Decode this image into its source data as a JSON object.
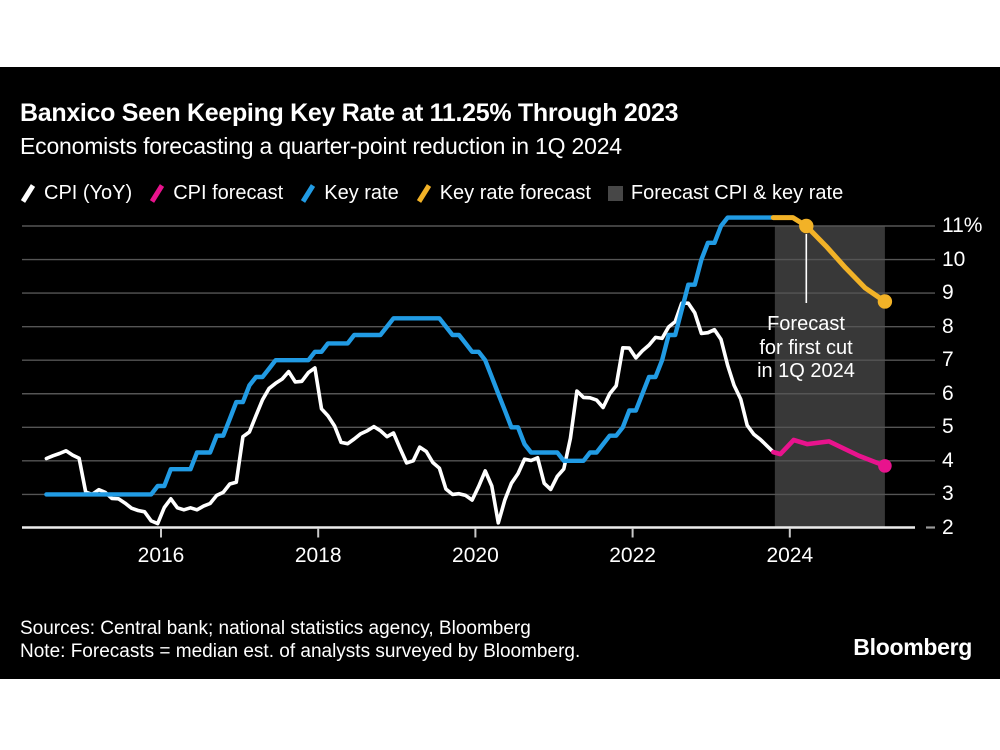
{
  "page": {
    "background": "#ffffff",
    "card_background": "#000000"
  },
  "header": {
    "title": "Banxico Seen Keeping Key Rate at 11.25% Through 2023",
    "subtitle": "Economists forecasting a quarter-point reduction in 1Q 2024"
  },
  "legend": {
    "items": [
      {
        "label": "CPI (YoY)",
        "color": "#ffffff",
        "marker": "slash"
      },
      {
        "label": "CPI forecast",
        "color": "#e8138d",
        "marker": "slash"
      },
      {
        "label": "Key rate",
        "color": "#219be4",
        "marker": "slash"
      },
      {
        "label": "Key rate forecast",
        "color": "#f2b227",
        "marker": "slash"
      },
      {
        "label": "Forecast CPI & key rate",
        "color": "#474747",
        "marker": "square"
      }
    ]
  },
  "annotation": {
    "lines": [
      "Forecast",
      "for first cut",
      "in 1Q 2024"
    ]
  },
  "footer": {
    "sources": "Sources: Central bank; national statistics agency, Bloomberg",
    "note": "Note: Forecasts = median est. of analysts surveyed by Bloomberg.",
    "brand": "Bloomberg"
  },
  "chart_data": {
    "type": "line",
    "title": "Banxico Seen Keeping Key Rate at 11.25% Through 2023",
    "xlabel": "",
    "ylabel": "%",
    "grid": true,
    "legend_position": "top",
    "x_axis": {
      "tick_labels": [
        "2016",
        "2018",
        "2020",
        "2022",
        "2024"
      ],
      "tick_values": [
        2016,
        2018,
        2020,
        2022,
        2024
      ],
      "range": [
        2014.2,
        2025.85
      ]
    },
    "y_axis": {
      "tick_labels": [
        "11%",
        "10",
        "9",
        "8",
        "7",
        "6",
        "5",
        "4",
        "3",
        "2"
      ],
      "tick_values": [
        11,
        10,
        9,
        8,
        7,
        6,
        5,
        4,
        3,
        2
      ],
      "range": [
        2,
        11.4
      ]
    },
    "forecast_band": {
      "x_start": 2023.81,
      "x_end": 2025.21,
      "color": "#383838"
    },
    "series": [
      {
        "name": "CPI (YoY)",
        "color": "#ffffff",
        "width": 3.6,
        "x_start": 2014.5417,
        "x_step": 0.0833333,
        "values": [
          4.07,
          4.15,
          4.22,
          4.3,
          4.17,
          4.08,
          3.07,
          3.0,
          3.14,
          3.06,
          2.88,
          2.87,
          2.74,
          2.59,
          2.52,
          2.48,
          2.21,
          2.13,
          2.61,
          2.87,
          2.6,
          2.54,
          2.6,
          2.54,
          2.65,
          2.73,
          2.97,
          3.06,
          3.31,
          3.36,
          4.72,
          4.86,
          5.35,
          5.82,
          6.16,
          6.31,
          6.44,
          6.66,
          6.35,
          6.37,
          6.63,
          6.77,
          5.55,
          5.34,
          5.04,
          4.55,
          4.51,
          4.65,
          4.81,
          4.9,
          5.02,
          4.9,
          4.72,
          4.83,
          4.37,
          3.94,
          4.0,
          4.41,
          4.28,
          3.95,
          3.78,
          3.16,
          3.0,
          3.02,
          2.97,
          2.83,
          3.24,
          3.7,
          3.25,
          2.15,
          2.84,
          3.33,
          3.62,
          4.05,
          4.01,
          4.09,
          3.33,
          3.15,
          3.54,
          3.76,
          4.67,
          6.08,
          5.89,
          5.88,
          5.81,
          5.59,
          6.0,
          6.24,
          7.37,
          7.36,
          7.07,
          7.28,
          7.45,
          7.68,
          7.65,
          7.99,
          8.15,
          8.7,
          8.7,
          8.41,
          7.8,
          7.82,
          7.91,
          7.62,
          6.85,
          6.25,
          5.84,
          5.06,
          4.79,
          4.64,
          4.45,
          4.26
        ]
      },
      {
        "name": "Key rate",
        "color": "#219be4",
        "width": 4.4,
        "x_start": 2014.5417,
        "x_step": 0.0833333,
        "values": [
          3.0,
          3.0,
          3.0,
          3.0,
          3.0,
          3.0,
          3.0,
          3.0,
          3.0,
          3.0,
          3.0,
          3.0,
          3.0,
          3.0,
          3.0,
          3.0,
          3.0,
          3.25,
          3.25,
          3.75,
          3.75,
          3.75,
          3.75,
          4.25,
          4.25,
          4.25,
          4.75,
          4.75,
          5.25,
          5.75,
          5.75,
          6.25,
          6.5,
          6.5,
          6.75,
          7.0,
          7.0,
          7.0,
          7.0,
          7.0,
          7.0,
          7.25,
          7.25,
          7.5,
          7.5,
          7.5,
          7.5,
          7.75,
          7.75,
          7.75,
          7.75,
          7.75,
          8.0,
          8.25,
          8.25,
          8.25,
          8.25,
          8.25,
          8.25,
          8.25,
          8.25,
          8.0,
          7.75,
          7.75,
          7.5,
          7.25,
          7.25,
          7.0,
          6.5,
          6.0,
          5.5,
          5.0,
          5.0,
          4.5,
          4.25,
          4.25,
          4.25,
          4.25,
          4.25,
          4.0,
          4.0,
          4.0,
          4.0,
          4.25,
          4.25,
          4.5,
          4.75,
          4.75,
          5.0,
          5.5,
          5.5,
          6.0,
          6.5,
          6.5,
          7.0,
          7.75,
          7.75,
          8.5,
          9.25,
          9.25,
          10.0,
          10.5,
          10.5,
          11.0,
          11.25,
          11.25,
          11.25,
          11.25,
          11.25,
          11.25,
          11.25,
          11.25
        ]
      },
      {
        "name": "Key rate forecast",
        "color": "#f2b227",
        "width": 5.0,
        "x": [
          2023.79,
          2024.04,
          2024.21,
          2024.46,
          2024.71,
          2024.96,
          2025.21
        ],
        "values": [
          11.25,
          11.25,
          11.0,
          10.4,
          9.75,
          9.15,
          8.75
        ],
        "markers": [
          2,
          6
        ],
        "marker_radius": 7.2
      },
      {
        "name": "CPI forecast",
        "color": "#e8138d",
        "width": 4.6,
        "x": [
          2023.79,
          2023.88,
          2024.05,
          2024.22,
          2024.5,
          2024.88,
          2025.21
        ],
        "values": [
          4.26,
          4.2,
          4.62,
          4.5,
          4.58,
          4.15,
          3.85
        ],
        "markers": [
          6
        ],
        "marker_radius": 6.8
      }
    ],
    "annotation_target": {
      "x": 2024.21,
      "value": 11.0
    }
  }
}
